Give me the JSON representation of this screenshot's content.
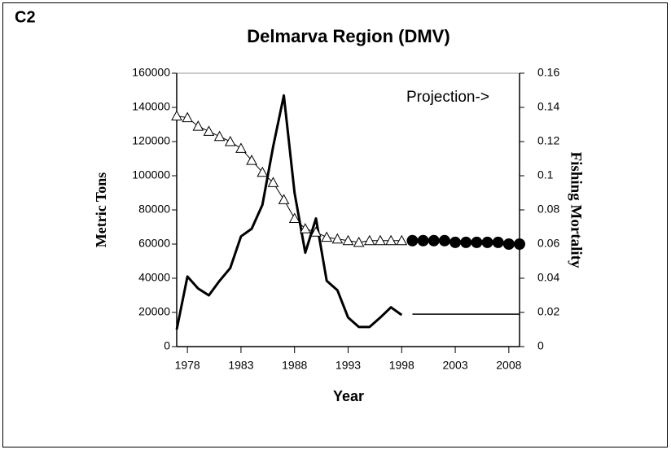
{
  "chart_data": {
    "type": "line",
    "panel_label": "C2",
    "title": "Delmarva Region (DMV)",
    "annotation": "Projection->",
    "xlabel": "Year",
    "ylabel": "Metric Tons",
    "y2label": "Fishing Mortality",
    "x": [
      1977,
      1978,
      1979,
      1980,
      1981,
      1982,
      1983,
      1984,
      1985,
      1986,
      1987,
      1988,
      1989,
      1990,
      1991,
      1992,
      1993,
      1994,
      1995,
      1996,
      1997,
      1998,
      1999,
      2000,
      2001,
      2002,
      2003,
      2004,
      2005,
      2006,
      2007,
      2008,
      2009
    ],
    "xlim": [
      1977,
      2009
    ],
    "xticks": [
      1978,
      1983,
      1988,
      1993,
      1998,
      2003,
      2008
    ],
    "ylim": [
      0,
      160000
    ],
    "yticks": [
      0,
      20000,
      40000,
      60000,
      80000,
      100000,
      120000,
      140000,
      160000
    ],
    "y2lim": [
      0,
      0.16
    ],
    "y2ticks": [
      0,
      0.02,
      0.04,
      0.06,
      0.08,
      0.1,
      0.12,
      0.14,
      0.16
    ],
    "series": [
      {
        "color": "#000000",
        "line_width": 3,
        "marker": "none",
        "axis": "y",
        "values": [
          10000,
          41000,
          34000,
          30000,
          38500,
          46000,
          64500,
          69000,
          83000,
          117000,
          147000,
          90000,
          55000,
          75000,
          38500,
          33000,
          17000,
          11500,
          11500,
          17000,
          23000,
          18500,
          null,
          null,
          null,
          null,
          null,
          null,
          null,
          null,
          null,
          null,
          null
        ]
      },
      {
        "color": "#000000",
        "line_width": 1.5,
        "marker": "none",
        "axis": "y",
        "values": [
          null,
          null,
          null,
          null,
          null,
          null,
          null,
          null,
          null,
          null,
          null,
          null,
          null,
          null,
          null,
          null,
          null,
          null,
          null,
          null,
          null,
          null,
          19000,
          19000,
          19000,
          19000,
          19000,
          19000,
          19000,
          19000,
          19000,
          19000,
          19000
        ]
      },
      {
        "color": "#000000",
        "line_width": 1,
        "marker": "triangle",
        "axis": "y2",
        "values": [
          0.135,
          0.134,
          0.129,
          0.126,
          0.123,
          0.12,
          0.116,
          0.109,
          0.102,
          0.096,
          0.086,
          0.075,
          0.069,
          0.067,
          0.064,
          0.063,
          0.062,
          0.061,
          0.062,
          0.062,
          0.062,
          0.062,
          null,
          null,
          null,
          null,
          null,
          null,
          null,
          null,
          null,
          null,
          null
        ]
      },
      {
        "color": "#000000",
        "line_width": 0,
        "marker": "circle",
        "axis": "y2",
        "values": [
          null,
          null,
          null,
          null,
          null,
          null,
          null,
          null,
          null,
          null,
          null,
          null,
          null,
          null,
          null,
          null,
          null,
          null,
          null,
          null,
          null,
          null,
          0.062,
          0.062,
          0.062,
          0.062,
          0.061,
          0.061,
          0.061,
          0.061,
          0.061,
          0.06,
          0.06
        ]
      }
    ]
  }
}
